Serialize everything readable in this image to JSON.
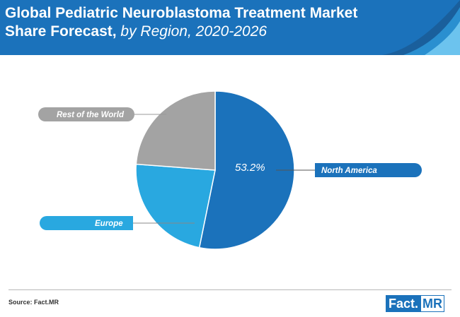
{
  "header": {
    "title_line1": "Global Pediatric Neuroblastoma Treatment Market",
    "title_line2_bold": "Share Forecast,",
    "title_line2_italic": " by Region, 2020-2026"
  },
  "chart_data": {
    "type": "pie",
    "title": "Global Pediatric Neuroblastoma Treatment Market Share Forecast, by Region, 2020-2026",
    "slices": [
      {
        "name": "North America",
        "value": 53.2,
        "color": "#1b72bb",
        "label": "53.2%"
      },
      {
        "name": "Europe",
        "value": 23.0,
        "color": "#29a8e0"
      },
      {
        "name": "Rest of the World",
        "value": 23.8,
        "color": "#a3a3a3"
      }
    ]
  },
  "footer": {
    "source": "Source: Fact.MR",
    "brand_left": "Fact.",
    "brand_right": "MR"
  },
  "colors": {
    "header": "#1b72bb",
    "north_america": "#1b72bb",
    "europe": "#29a8e0",
    "rest_of_world": "#a3a3a3"
  }
}
